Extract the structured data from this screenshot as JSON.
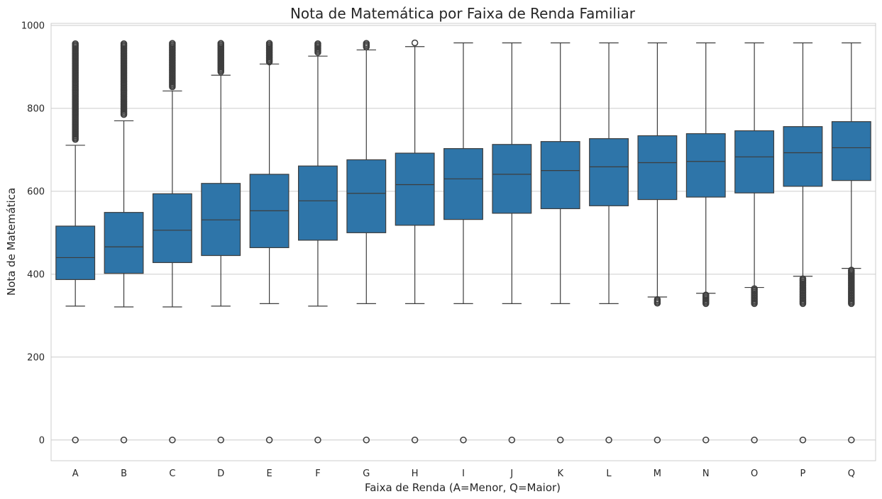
{
  "chart_data": {
    "type": "box",
    "title": "Nota de Matemática por Faixa de Renda Familiar",
    "xlabel": "Faixa de Renda (A=Menor, Q=Maior)",
    "ylabel": "Nota de Matemática",
    "ylim": [
      -50,
      1005
    ],
    "yticks": [
      0,
      200,
      400,
      600,
      800,
      1000
    ],
    "grid": true,
    "legend": "none",
    "box_color": "#2e75a9",
    "edge_color": "#3d3d3d",
    "categories": [
      "A",
      "B",
      "C",
      "D",
      "E",
      "F",
      "G",
      "H",
      "I",
      "J",
      "K",
      "L",
      "M",
      "N",
      "O",
      "P",
      "Q"
    ],
    "stats": [
      {
        "category": "A",
        "whisker_low": 323,
        "q1": 387,
        "median": 440,
        "q3": 516,
        "whisker_high": 711,
        "outliers_high": [
          958,
          930,
          900,
          870,
          840,
          810,
          780,
          750,
          725
        ],
        "outliers_low": [
          0
        ]
      },
      {
        "category": "B",
        "whisker_low": 321,
        "q1": 402,
        "median": 466,
        "q3": 549,
        "whisker_high": 770,
        "outliers_high": [
          958,
          930,
          900,
          870,
          840,
          810,
          785
        ],
        "outliers_low": [
          0
        ]
      },
      {
        "category": "C",
        "whisker_low": 321,
        "q1": 428,
        "median": 506,
        "q3": 594,
        "whisker_high": 842,
        "outliers_high": [
          958,
          930,
          900,
          870,
          852
        ],
        "outliers_low": [
          0
        ]
      },
      {
        "category": "D",
        "whisker_low": 323,
        "q1": 445,
        "median": 531,
        "q3": 619,
        "whisker_high": 880,
        "outliers_high": [
          958,
          940,
          920,
          900,
          888
        ],
        "outliers_low": [
          0
        ]
      },
      {
        "category": "E",
        "whisker_low": 329,
        "q1": 464,
        "median": 553,
        "q3": 641,
        "whisker_high": 907,
        "outliers_high": [
          958,
          940,
          925,
          912
        ],
        "outliers_low": [
          0
        ]
      },
      {
        "category": "F",
        "whisker_low": 323,
        "q1": 482,
        "median": 577,
        "q3": 661,
        "whisker_high": 926,
        "outliers_high": [
          958,
          945,
          935
        ],
        "outliers_low": [
          0
        ]
      },
      {
        "category": "G",
        "whisker_low": 329,
        "q1": 500,
        "median": 595,
        "q3": 676,
        "whisker_high": 941,
        "outliers_high": [
          958,
          948
        ],
        "outliers_low": [
          0
        ]
      },
      {
        "category": "H",
        "whisker_low": 329,
        "q1": 518,
        "median": 616,
        "q3": 692,
        "whisker_high": 949,
        "outliers_high": [
          958
        ],
        "outliers_low": [
          0
        ]
      },
      {
        "category": "I",
        "whisker_low": 329,
        "q1": 532,
        "median": 630,
        "q3": 703,
        "whisker_high": 958,
        "outliers_high": [],
        "outliers_low": [
          0
        ]
      },
      {
        "category": "J",
        "whisker_low": 329,
        "q1": 547,
        "median": 641,
        "q3": 713,
        "whisker_high": 958,
        "outliers_high": [],
        "outliers_low": [
          0
        ]
      },
      {
        "category": "K",
        "whisker_low": 329,
        "q1": 558,
        "median": 650,
        "q3": 720,
        "whisker_high": 958,
        "outliers_high": [],
        "outliers_low": [
          0
        ]
      },
      {
        "category": "L",
        "whisker_low": 329,
        "q1": 565,
        "median": 659,
        "q3": 727,
        "whisker_high": 958,
        "outliers_high": [],
        "outliers_low": [
          0
        ]
      },
      {
        "category": "M",
        "whisker_low": 345,
        "q1": 580,
        "median": 669,
        "q3": 734,
        "whisker_high": 958,
        "outliers_high": [],
        "outliers_low": [
          340,
          335,
          330,
          0
        ]
      },
      {
        "category": "N",
        "whisker_low": 354,
        "q1": 586,
        "median": 672,
        "q3": 739,
        "whisker_high": 958,
        "outliers_high": [],
        "outliers_low": [
          350,
          342,
          334,
          329,
          0
        ]
      },
      {
        "category": "O",
        "whisker_low": 368,
        "q1": 596,
        "median": 683,
        "q3": 746,
        "whisker_high": 958,
        "outliers_high": [],
        "outliers_low": [
          365,
          355,
          345,
          335,
          329,
          0
        ]
      },
      {
        "category": "P",
        "whisker_low": 395,
        "q1": 612,
        "median": 693,
        "q3": 756,
        "whisker_high": 958,
        "outliers_high": [],
        "outliers_low": [
          390,
          375,
          360,
          345,
          335,
          329,
          0
        ]
      },
      {
        "category": "Q",
        "whisker_low": 414,
        "q1": 626,
        "median": 705,
        "q3": 768,
        "whisker_high": 958,
        "outliers_high": [],
        "outliers_low": [
          410,
          395,
          380,
          365,
          350,
          338,
          329,
          0
        ]
      }
    ]
  }
}
